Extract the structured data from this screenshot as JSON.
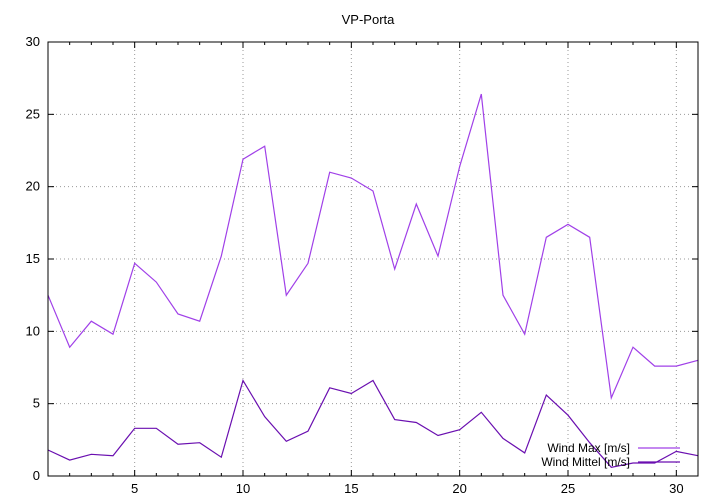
{
  "chart_data": {
    "type": "line",
    "title": "VP-Porta",
    "xlabel": "",
    "ylabel": "",
    "xlim": [
      1,
      31
    ],
    "ylim": [
      0,
      30
    ],
    "x_ticks": [
      5,
      10,
      15,
      20,
      25,
      30
    ],
    "y_ticks": [
      0,
      5,
      10,
      15,
      20,
      25,
      30
    ],
    "grid": true,
    "legend_position": "bottom-right",
    "x": [
      1,
      2,
      3,
      4,
      5,
      6,
      7,
      8,
      9,
      10,
      11,
      12,
      13,
      14,
      15,
      16,
      17,
      18,
      19,
      20,
      21,
      22,
      23,
      24,
      25,
      26,
      27,
      28,
      29,
      30,
      31
    ],
    "series": [
      {
        "name": "Wind Max [m/s]",
        "color": "#a040e8",
        "values": [
          12.5,
          8.9,
          10.7,
          9.8,
          14.7,
          13.4,
          11.2,
          10.7,
          15.2,
          21.9,
          22.8,
          12.5,
          14.7,
          21.0,
          20.6,
          19.7,
          14.3,
          18.8,
          15.2,
          21.4,
          26.4,
          12.5,
          9.8,
          16.5,
          17.4,
          16.5,
          5.4,
          8.9,
          7.6,
          7.6,
          8.0
        ]
      },
      {
        "name": "Wind Mittel [m/s]",
        "color": "#6a0fb0",
        "values": [
          1.8,
          1.1,
          1.5,
          1.4,
          3.3,
          3.3,
          2.2,
          2.3,
          1.3,
          6.6,
          4.1,
          2.4,
          3.1,
          6.1,
          5.7,
          6.6,
          3.9,
          3.7,
          2.8,
          3.2,
          4.4,
          2.6,
          1.6,
          5.6,
          4.2,
          2.3,
          0.6,
          0.9,
          0.9,
          1.7,
          1.4
        ]
      }
    ]
  }
}
